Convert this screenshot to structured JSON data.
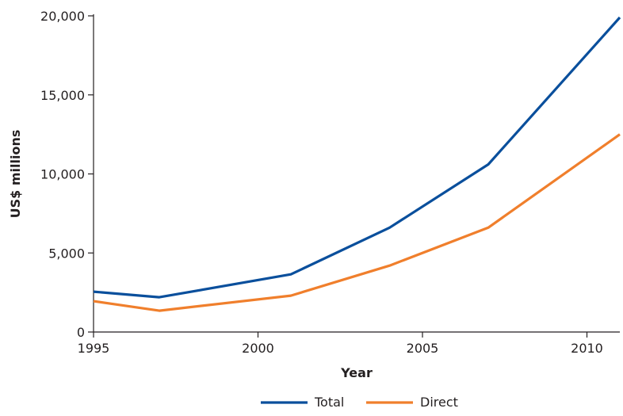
{
  "chart_data": {
    "type": "line",
    "title": "",
    "xlabel": "Year",
    "ylabel": "US$ millions",
    "xlim": [
      1995,
      2011
    ],
    "ylim": [
      0,
      20000
    ],
    "x_ticks": [
      1995,
      2000,
      2005,
      2010
    ],
    "x_tick_labels": [
      "1995",
      "2000",
      "2005",
      "2010"
    ],
    "y_ticks": [
      0,
      5000,
      10000,
      15000,
      20000
    ],
    "y_tick_labels": [
      "0",
      "5,000",
      "10,000",
      "15,000",
      "20,000"
    ],
    "grid": false,
    "legend_position": "bottom-center",
    "series": [
      {
        "name": "Total",
        "color": "#0a4f9c",
        "x": [
          1995,
          1997,
          2001,
          2004,
          2007,
          2011
        ],
        "y": [
          2550,
          2200,
          3650,
          6600,
          10600,
          19900
        ]
      },
      {
        "name": "Direct",
        "color": "#f07f2c",
        "x": [
          1995,
          1997,
          2001,
          2004,
          2007,
          2011
        ],
        "y": [
          1950,
          1350,
          2300,
          4200,
          6600,
          12500
        ]
      }
    ]
  }
}
